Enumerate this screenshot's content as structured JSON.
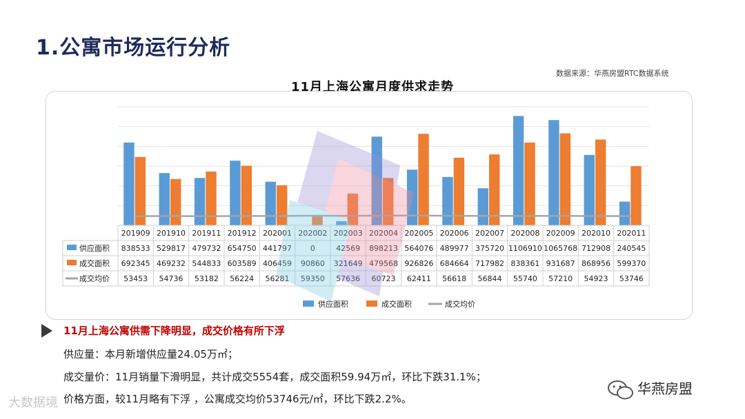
{
  "page": {
    "title": "1.公寓市场运行分析",
    "source": "数据来源：华燕房盟RTC数据系统"
  },
  "chart_data": {
    "type": "bar",
    "title": "11月上海公寓月度供求走势",
    "categories": [
      "201909",
      "201910",
      "201911",
      "201912",
      "202001",
      "202002",
      "202003",
      "202004",
      "202005",
      "202006",
      "202007",
      "202008",
      "202009",
      "202010",
      "202011"
    ],
    "series": [
      {
        "name": "供应面积",
        "type": "bar",
        "color": "#5b9bd5",
        "values": [
          838533,
          529817,
          479732,
          654750,
          441797,
          0,
          42569,
          898213,
          564076,
          489977,
          375720,
          1106910,
          1065768,
          712908,
          240545
        ]
      },
      {
        "name": "成交面积",
        "type": "bar",
        "color": "#ed7d31",
        "values": [
          692345,
          469232,
          544833,
          603589,
          406459,
          90860,
          321649,
          479568,
          926826,
          684664,
          717982,
          838361,
          931687,
          868956,
          599370
        ]
      },
      {
        "name": "成交均价",
        "type": "line",
        "color": "#a5a5a5",
        "values": [
          53453,
          54736,
          53182,
          56224,
          56281,
          59350,
          57636,
          60723,
          62411,
          56618,
          56844,
          55740,
          57210,
          54923,
          53746
        ]
      }
    ],
    "ylim": [
      0,
      1200000
    ],
    "grid": true,
    "legend_position": "bottom"
  },
  "summary": {
    "headline": "11月上海公寓供需下降明显，成交价格有所下浮",
    "lines": [
      "供应量：本月新增供应量24.05万㎡；",
      "成交量价：11月销量下滑明显，共计成交5554套，成交面积59.94万㎡，环比下跌31.1%；",
      "价格方面，较11月略有下浮 ，公寓成交均价53746元/㎡，环比下跌2.2%。"
    ]
  },
  "branding": {
    "brand_name": "华燕房盟",
    "watermark": "大数据境"
  }
}
